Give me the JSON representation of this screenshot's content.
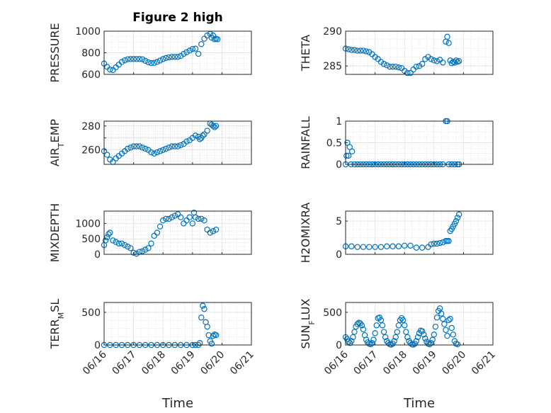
{
  "figure": {
    "title": "Figure 2 high",
    "marker_color": "#0072BD"
  },
  "chart_data": [
    {
      "type": "scatter",
      "ylabel": "PRESSURE",
      "xlabel": "",
      "xlim": [
        "06/16",
        "06/21"
      ],
      "ylim": [
        600,
        1000
      ],
      "yticks": [
        600,
        800,
        1000
      ],
      "xticks": [
        "06/16",
        "06/17",
        "06/18",
        "06/19",
        "06/20",
        "06/21"
      ],
      "x": [
        0.0,
        0.1,
        0.2,
        0.3,
        0.4,
        0.5,
        0.6,
        0.7,
        0.8,
        0.9,
        1.0,
        1.1,
        1.2,
        1.3,
        1.4,
        1.5,
        1.6,
        1.7,
        1.8,
        1.9,
        2.0,
        2.1,
        2.2,
        2.3,
        2.4,
        2.5,
        2.6,
        2.7,
        2.8,
        2.9,
        3.0,
        3.1,
        3.2,
        3.3,
        3.4,
        3.5,
        3.6,
        3.65,
        3.7,
        3.75,
        3.8,
        3.85
      ],
      "y": [
        700,
        670,
        645,
        640,
        665,
        690,
        715,
        730,
        740,
        742,
        742,
        742,
        742,
        740,
        725,
        712,
        705,
        706,
        715,
        728,
        742,
        752,
        758,
        762,
        762,
        762,
        770,
        790,
        805,
        820,
        835,
        838,
        790,
        880,
        930,
        960,
        975,
        940,
        960,
        925,
        930,
        925
      ]
    },
    {
      "type": "scatter",
      "ylabel": "THETA",
      "xlabel": "",
      "xlim": [
        "06/16",
        "06/21"
      ],
      "ylim": [
        283.8,
        290
      ],
      "yticks": [
        285,
        290
      ],
      "xticks": [
        "06/16",
        "06/17",
        "06/18",
        "06/19",
        "06/20",
        "06/21"
      ],
      "x": [
        0.0,
        0.1,
        0.2,
        0.3,
        0.4,
        0.5,
        0.6,
        0.7,
        0.8,
        0.9,
        1.0,
        1.1,
        1.2,
        1.3,
        1.4,
        1.5,
        1.6,
        1.7,
        1.8,
        1.9,
        2.0,
        2.1,
        2.2,
        2.3,
        2.4,
        2.5,
        2.6,
        2.7,
        2.8,
        2.9,
        3.0,
        3.1,
        3.2,
        3.3,
        3.4,
        3.45,
        3.5,
        3.55,
        3.6,
        3.65,
        3.7,
        3.75,
        3.8,
        3.85
      ],
      "y": [
        287.5,
        287.4,
        287.3,
        287.3,
        287.2,
        287.2,
        287.2,
        287.1,
        287.0,
        286.7,
        286.3,
        286.0,
        285.6,
        285.3,
        285.1,
        284.9,
        284.9,
        284.9,
        284.8,
        284.7,
        284.3,
        284.0,
        284.0,
        284.5,
        284.9,
        285.0,
        285.3,
        286.0,
        286.3,
        286.0,
        285.8,
        285.7,
        285.9,
        285.5,
        288.5,
        289.2,
        288.3,
        285.8,
        285.4,
        285.6,
        285.5,
        285.8,
        285.6,
        285.7
      ]
    },
    {
      "type": "scatter",
      "ylabel": "AIR_TEMP",
      "xlabel": "",
      "xlim": [
        "06/16",
        "06/21"
      ],
      "ylim": [
        248,
        284
      ],
      "yticks": [
        260,
        270,
        280
      ],
      "yticklabels": [
        "260",
        "",
        "280"
      ],
      "xticks": [
        "06/16",
        "06/17",
        "06/18",
        "06/19",
        "06/20",
        "06/21"
      ],
      "x": [
        0.0,
        0.1,
        0.2,
        0.3,
        0.4,
        0.5,
        0.6,
        0.7,
        0.8,
        0.9,
        1.0,
        1.1,
        1.2,
        1.3,
        1.4,
        1.5,
        1.6,
        1.7,
        1.8,
        1.9,
        2.0,
        2.1,
        2.2,
        2.3,
        2.4,
        2.5,
        2.6,
        2.7,
        2.8,
        2.9,
        3.0,
        3.1,
        3.2,
        3.25,
        3.3,
        3.35,
        3.4,
        3.5,
        3.6,
        3.65,
        3.7,
        3.75,
        3.8
      ],
      "y": [
        259,
        256,
        252,
        250,
        253,
        255,
        257,
        259,
        261,
        262,
        263,
        263,
        263,
        262,
        261,
        260,
        258,
        257,
        258,
        259,
        260,
        261,
        262,
        263,
        263,
        263,
        264,
        265,
        267,
        268,
        270,
        272,
        271,
        269,
        270,
        272,
        273,
        276,
        282,
        281,
        280,
        279,
        280
      ]
    },
    {
      "type": "scatter",
      "ylabel": "RAINFALL",
      "xlabel": "",
      "xlim": [
        "06/16",
        "06/21"
      ],
      "ylim": [
        0,
        1
      ],
      "yticks": [
        0,
        0.5,
        1
      ],
      "xticks": [
        "06/16",
        "06/17",
        "06/18",
        "06/19",
        "06/20",
        "06/21"
      ],
      "x": [
        0.0,
        0.03,
        0.06,
        0.1,
        0.14,
        0.18,
        0.22,
        0.3,
        0.4,
        0.5,
        0.6,
        0.7,
        0.8,
        0.9,
        1.0,
        1.1,
        1.2,
        1.3,
        1.4,
        1.5,
        1.6,
        1.7,
        1.8,
        1.9,
        2.0,
        2.1,
        2.2,
        2.3,
        2.4,
        2.5,
        2.6,
        2.7,
        2.8,
        2.9,
        3.0,
        3.1,
        3.2,
        3.3,
        3.4,
        3.45,
        3.5,
        3.6,
        3.7,
        3.8,
        3.85
      ],
      "y": [
        0,
        0.2,
        0.5,
        0.2,
        0.4,
        0,
        0.3,
        0,
        0,
        0,
        0,
        0,
        0,
        0,
        0,
        0,
        0,
        0,
        0,
        0,
        0,
        0,
        0,
        0,
        0,
        0,
        0,
        0,
        0,
        0,
        0,
        0,
        0,
        0,
        0,
        0,
        0,
        0,
        1,
        1,
        0,
        0,
        0,
        0,
        0
      ]
    },
    {
      "type": "scatter",
      "ylabel": "MIXDEPTH",
      "xlabel": "",
      "xlim": [
        "06/16",
        "06/21"
      ],
      "ylim": [
        0,
        1400
      ],
      "yticks": [
        0,
        500,
        1000
      ],
      "xticks": [
        "06/16",
        "06/17",
        "06/18",
        "06/19",
        "06/20",
        "06/21"
      ],
      "x": [
        0.0,
        0.05,
        0.1,
        0.15,
        0.2,
        0.3,
        0.4,
        0.5,
        0.6,
        0.7,
        0.8,
        0.9,
        1.0,
        1.1,
        1.2,
        1.3,
        1.4,
        1.5,
        1.6,
        1.7,
        1.8,
        1.9,
        2.0,
        2.1,
        2.2,
        2.3,
        2.4,
        2.5,
        2.6,
        2.7,
        2.8,
        2.9,
        3.0,
        3.05,
        3.1,
        3.2,
        3.3,
        3.4,
        3.5,
        3.6,
        3.7,
        3.8
      ],
      "y": [
        300,
        450,
        550,
        650,
        700,
        450,
        400,
        350,
        350,
        300,
        250,
        200,
        50,
        20,
        80,
        100,
        150,
        200,
        350,
        600,
        700,
        900,
        1100,
        1150,
        1150,
        1200,
        1250,
        1300,
        1200,
        1000,
        1100,
        1200,
        1000,
        1350,
        1200,
        1150,
        1150,
        1100,
        800,
        700,
        750,
        800
      ]
    },
    {
      "type": "scatter",
      "ylabel": "H2OMIXRA",
      "xlabel": "",
      "xlim": [
        "06/16",
        "06/21"
      ],
      "ylim": [
        0,
        6.5
      ],
      "yticks": [
        0,
        5
      ],
      "xticks": [
        "06/16",
        "06/17",
        "06/18",
        "06/19",
        "06/20",
        "06/21"
      ],
      "x": [
        0.0,
        0.2,
        0.4,
        0.6,
        0.8,
        1.0,
        1.2,
        1.4,
        1.6,
        1.8,
        2.0,
        2.2,
        2.4,
        2.6,
        2.8,
        2.9,
        3.0,
        3.1,
        3.2,
        3.3,
        3.4,
        3.45,
        3.5,
        3.55,
        3.6,
        3.65,
        3.7,
        3.75,
        3.8,
        3.85
      ],
      "y": [
        1.2,
        1.2,
        1.1,
        1.1,
        1.1,
        1.1,
        1.1,
        1.2,
        1.2,
        1.2,
        1.3,
        1.3,
        1.0,
        1.0,
        1.1,
        1.5,
        1.6,
        1.6,
        1.7,
        1.8,
        2.0,
        2.0,
        2.0,
        3.5,
        3.8,
        4.2,
        4.6,
        5.0,
        5.5,
        6.0
      ]
    },
    {
      "type": "scatter",
      "ylabel": "TERR_MSL",
      "xlabel": "Time",
      "xlim": [
        "06/16",
        "06/21"
      ],
      "ylim": [
        0,
        650
      ],
      "yticks": [
        0,
        500
      ],
      "xticks": [
        "06/16",
        "06/17",
        "06/18",
        "06/19",
        "06/20",
        "06/21"
      ],
      "x": [
        0.0,
        0.2,
        0.4,
        0.6,
        0.8,
        1.0,
        1.2,
        1.4,
        1.6,
        1.8,
        2.0,
        2.2,
        2.4,
        2.6,
        2.8,
        3.0,
        3.1,
        3.2,
        3.25,
        3.3,
        3.35,
        3.4,
        3.45,
        3.5,
        3.55,
        3.6,
        3.65,
        3.7,
        3.75,
        3.8
      ],
      "y": [
        0,
        0,
        0,
        0,
        0,
        0,
        0,
        0,
        0,
        0,
        0,
        0,
        0,
        0,
        0,
        0,
        0,
        0,
        30,
        420,
        600,
        550,
        350,
        280,
        150,
        60,
        20,
        140,
        160,
        150
      ]
    },
    {
      "type": "scatter",
      "ylabel": "SUN_FLUX",
      "xlabel": "Time",
      "xlim": [
        "06/16",
        "06/21"
      ],
      "ylim": [
        0,
        650
      ],
      "yticks": [
        0,
        500
      ],
      "xticks": [
        "06/16",
        "06/17",
        "06/18",
        "06/19",
        "06/20",
        "06/21"
      ],
      "x": [
        0.0,
        0.05,
        0.1,
        0.15,
        0.2,
        0.25,
        0.3,
        0.35,
        0.4,
        0.45,
        0.5,
        0.55,
        0.6,
        0.65,
        0.7,
        0.75,
        0.8,
        0.85,
        0.9,
        0.95,
        1.0,
        1.05,
        1.1,
        1.15,
        1.2,
        1.25,
        1.3,
        1.35,
        1.4,
        1.45,
        1.5,
        1.55,
        1.6,
        1.65,
        1.7,
        1.75,
        1.8,
        1.85,
        1.9,
        1.95,
        2.0,
        2.05,
        2.1,
        2.15,
        2.2,
        2.25,
        2.3,
        2.35,
        2.4,
        2.45,
        2.5,
        2.55,
        2.6,
        2.65,
        2.7,
        2.75,
        2.8,
        2.85,
        2.9,
        2.95,
        3.0,
        3.05,
        3.1,
        3.15,
        3.2,
        3.25,
        3.3,
        3.35,
        3.4,
        3.45,
        3.5,
        3.55,
        3.6,
        3.65,
        3.7,
        3.75,
        3.8
      ],
      "y": [
        120,
        90,
        50,
        30,
        60,
        120,
        200,
        280,
        320,
        340,
        330,
        300,
        240,
        150,
        80,
        40,
        20,
        10,
        30,
        80,
        180,
        300,
        410,
        420,
        380,
        300,
        200,
        120,
        60,
        30,
        10,
        5,
        20,
        60,
        120,
        200,
        300,
        380,
        410,
        380,
        300,
        200,
        120,
        60,
        30,
        10,
        5,
        20,
        60,
        120,
        180,
        220,
        210,
        160,
        100,
        50,
        20,
        10,
        30,
        80,
        160,
        280,
        420,
        520,
        560,
        480,
        400,
        320,
        230,
        140,
        380,
        400,
        260,
        160,
        60,
        20,
        10
      ]
    }
  ]
}
